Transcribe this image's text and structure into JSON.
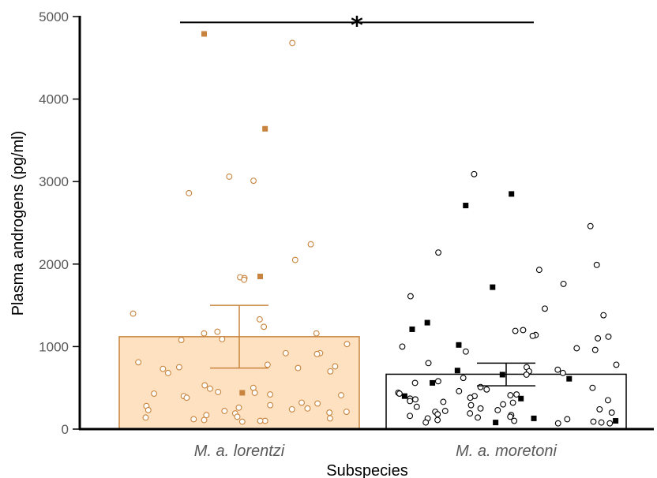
{
  "chart_data": {
    "type": "bar",
    "xlabel": "Subspecies",
    "ylabel": "Plasma androgens (pg/ml)",
    "ylim": [
      0,
      5000
    ],
    "yticks": [
      0,
      1000,
      2000,
      3000,
      4000,
      5000
    ],
    "ytick_labels": [
      "0",
      "1000",
      "2000",
      "3000",
      "4000",
      "5000"
    ],
    "categories": [
      "M. a. lorentzi",
      "M. a. moretoni"
    ],
    "values": [
      1120,
      665
    ],
    "error_upper": [
      1500,
      800
    ],
    "error_lower": [
      740,
      525
    ],
    "significance": {
      "label": "*",
      "between": [
        0,
        1
      ],
      "y": 4930
    },
    "colors": {
      "lorentzi_fill": "#fde1c0",
      "lorentzi_stroke": "#c8843e",
      "moretoni_fill": "#ffffff",
      "moretoni_stroke": "#000000"
    },
    "points": [
      {
        "category": "M. a. lorentzi",
        "circles": [
          4680,
          3010,
          3060,
          2860,
          2240,
          2050,
          1840,
          1830,
          1810,
          1400,
          1330,
          1240,
          1180,
          1160,
          1160,
          1090,
          1080,
          1030,
          920,
          920,
          910,
          810,
          780,
          760,
          750,
          740,
          730,
          700,
          680,
          530,
          500,
          490,
          450,
          440,
          430,
          420,
          410,
          400,
          380,
          320,
          310,
          290,
          280,
          260,
          250,
          240,
          230,
          220,
          210,
          200,
          190,
          170,
          150,
          140,
          130,
          120,
          110,
          100,
          100,
          90
        ],
        "squares": [
          4790,
          3640,
          1850,
          440
        ]
      },
      {
        "category": "M. a. moretoni",
        "circles": [
          3090,
          2460,
          2140,
          1990,
          1930,
          1760,
          1610,
          1460,
          1380,
          1200,
          1190,
          1140,
          1130,
          1120,
          1100,
          1000,
          980,
          960,
          940,
          800,
          780,
          750,
          720,
          700,
          680,
          660,
          620,
          580,
          560,
          510,
          500,
          480,
          460,
          440,
          430,
          420,
          410,
          400,
          380,
          370,
          360,
          350,
          340,
          330,
          320,
          300,
          290,
          270,
          250,
          240,
          230,
          220,
          210,
          200,
          190,
          180,
          170,
          160,
          150,
          140,
          130,
          120,
          110,
          100,
          90,
          80,
          80,
          70,
          70
        ],
        "squares": [
          2850,
          2710,
          1720,
          1290,
          1210,
          1020,
          710,
          660,
          610,
          560,
          400,
          370,
          130,
          100,
          80
        ]
      }
    ]
  }
}
